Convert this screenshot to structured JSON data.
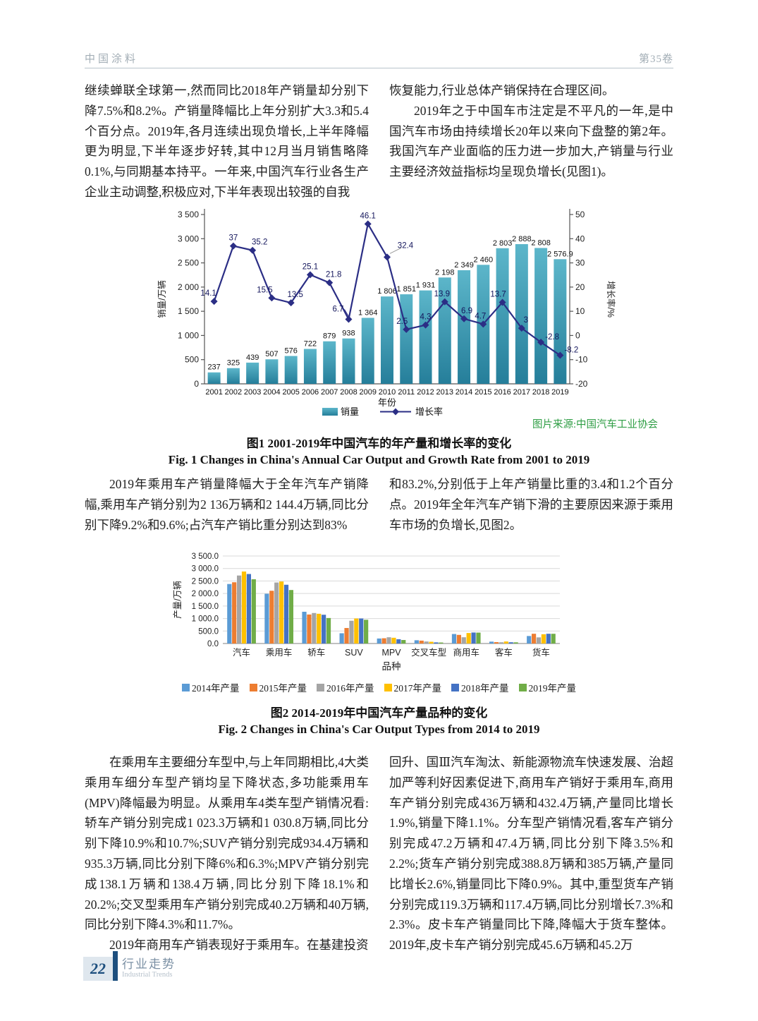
{
  "header": {
    "journal": "中国涂料",
    "volume": "第35卷"
  },
  "body": {
    "p1": "继续蝉联全球第一,然而同比2018年产销量却分别下降7.5%和8.2%。产销量降幅比上年分别扩大3.3和5.4个百分点。2019年,各月连续出现负增长,上半年降幅更为明显,下半年逐步好转,其中12月当月销售略降0.1%,与同期基本持平。一年来,中国汽车行业各生产企业主动调整,积极应对,下半年表现出较强的自我",
    "p2": "恢复能力,行业总体产销保持在合理区间。",
    "p3": "2019年之于中国车市注定是不平凡的一年,是中国汽车市场由持续增长20年以来向下盘整的第2年。我国汽车产业面临的压力进一步加大,产销量与行业主要经济效益指标均呈现负增长(见图1)。",
    "p4": "2019年乘用车产销量降幅大于全年汽车产销降幅,乘用车产销分别为2 136万辆和2 144.4万辆,同比分别下降9.2%和9.6%;占汽车产销比重分别达到83%",
    "p5": "和83.2%,分别低于上年产销量比重的3.4和1.2个百分点。2019年全年汽车产销下滑的主要原因来源于乘用车市场的负增长,见图2。",
    "p6": "在乘用车主要细分车型中,与上年同期相比,4大类乘用车细分车型产销均呈下降状态,多功能乘用车(MPV)降幅最为明显。从乘用车4类车型产销情况看:轿车产销分别完成1 023.3万辆和1 030.8万辆,同比分别下降10.9%和10.7%;SUV产销分别完成934.4万辆和935.3万辆,同比分别下降6%和6.3%;MPV产销分别完成138.1万辆和138.4万辆,同比分别下降18.1%和20.2%;交叉型乘用车产销分别完成40.2万辆和40万辆,同比分别下降4.3%和11.7%。",
    "p7": "2019年商用车产销表现好于乘用车。在基建投资",
    "p8": "回升、国Ⅲ汽车淘汰、新能源物流车快速发展、治超加严等利好因素促进下,商用车产销好于乘用车,商用车产销分别完成436万辆和432.4万辆,产量同比增长1.9%,销量下降1.1%。分车型产销情况看,客车产销分别完成47.2万辆和47.4万辆,同比分别下降3.5%和2.2%;货车产销分别完成388.8万辆和385万辆,产量同比增长2.6%,销量同比下降0.9%。其中,重型货车产销分别完成119.3万辆和117.4万辆,同比分别增长7.3%和2.3%。皮卡车产销量同比下降,降幅大于货车整体。2019年,皮卡车产销分别完成45.6万辆和45.2万"
  },
  "figure1": {
    "source": "图片来源:中国汽车工业协会",
    "caption_cn": "图1  2001-2019年中国汽车的年产量和增长率的变化",
    "caption_en": "Fig. 1  Changes in China's Annual Car Output and Growth Rate from 2001 to 2019"
  },
  "figure2": {
    "caption_cn": "图2  2014-2019年中国汽车产量品种的变化",
    "caption_en": "Fig. 2  Changes in China's Car Output Types from 2014 to 2019"
  },
  "footer": {
    "page_number": "22",
    "section_cn": "行业走势",
    "section_en": "Industrial Trends"
  },
  "chart_data": [
    {
      "type": "bar",
      "subtype": "bar+line dual axis",
      "x": [
        "2001",
        "2002",
        "2003",
        "2004",
        "2005",
        "2006",
        "2007",
        "2008",
        "2009",
        "2010",
        "2011",
        "2012",
        "2013",
        "2014",
        "2015",
        "2016",
        "2017",
        "2018",
        "2019"
      ],
      "xlabel": "年份",
      "ylabel_left": "销量/万辆",
      "ylabel_right": "增长率/%",
      "ylim_left": [
        0,
        3500
      ],
      "ytick_left": 500,
      "ylim_right": [
        -20,
        50
      ],
      "ytick_right": 10,
      "series": [
        {
          "name": "销量",
          "type": "bar",
          "axis": "left",
          "color": "#3896b0",
          "values": [
            237,
            325,
            439,
            507,
            576,
            722,
            879,
            938,
            1364,
            1806,
            1851,
            1931,
            2198,
            2349,
            2460,
            2803,
            2888,
            2808,
            2576.9
          ]
        },
        {
          "name": "增长率",
          "type": "line",
          "axis": "right",
          "color": "#2b2e85",
          "values": [
            14.1,
            37,
            35.2,
            15.5,
            13.5,
            25.1,
            21.8,
            6.7,
            46.1,
            32.4,
            2.5,
            4.3,
            13.9,
            6.9,
            4.7,
            13.7,
            3,
            -2.8,
            -8.2
          ]
        }
      ],
      "legend": [
        "销量",
        "增长率"
      ],
      "legend_position": "bottom",
      "grid": false
    },
    {
      "type": "bar",
      "subtype": "grouped",
      "categories": [
        "汽车",
        "乘用车",
        "轿车",
        "SUV",
        "MPV",
        "交叉车型",
        "商用车",
        "客车",
        "货车"
      ],
      "xlabel": "品种",
      "ylabel": "产量/万辆",
      "ylim": [
        0,
        3500
      ],
      "ytick": 500,
      "series": [
        {
          "name": "2014年产量",
          "color": "#5B9BD5",
          "values": [
            2380,
            1990,
            1270,
            410,
            200,
            130,
            380,
            75,
            300
          ]
        },
        {
          "name": "2015年产量",
          "color": "#ED7D31",
          "values": [
            2450,
            2110,
            1160,
            620,
            210,
            115,
            345,
            55,
            390
          ]
        },
        {
          "name": "2016年产量",
          "color": "#A5A5A5",
          "values": [
            2720,
            2440,
            1220,
            910,
            250,
            80,
            250,
            50,
            245
          ]
        },
        {
          "name": "2017年产量",
          "color": "#FFC000",
          "values": [
            2880,
            2480,
            1190,
            1000,
            230,
            70,
            420,
            80,
            370
          ]
        },
        {
          "name": "2018年产量",
          "color": "#4472C4",
          "values": [
            2780,
            2350,
            1150,
            1000,
            170,
            45,
            440,
            50,
            390
          ]
        },
        {
          "name": "2019年产量",
          "color": "#70AD47",
          "values": [
            2570,
            2140,
            1020,
            950,
            140,
            40,
            436,
            47,
            389
          ]
        }
      ],
      "legend_position": "bottom",
      "grid": true
    }
  ]
}
